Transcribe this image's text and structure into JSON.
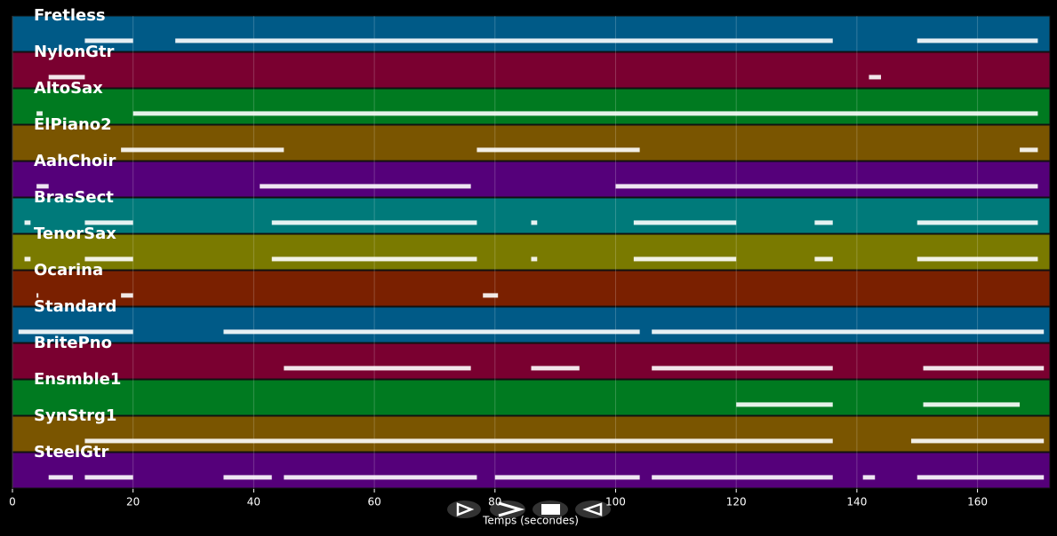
{
  "chart_data": {
    "type": "timeline",
    "xlabel": "Temps (secondes)",
    "xlim": [
      0,
      172
    ],
    "xticks": [
      0,
      20,
      40,
      60,
      80,
      100,
      120,
      140,
      160
    ],
    "grid": true,
    "tracks": [
      {
        "name": "Fretless",
        "color": "#005a87",
        "notes": [
          [
            12,
            20
          ],
          [
            27,
            136
          ],
          [
            150,
            170
          ]
        ]
      },
      {
        "name": "NylonGtr",
        "color": "#7a0030",
        "notes": [
          [
            6,
            12
          ],
          [
            142,
            144
          ]
        ]
      },
      {
        "name": "AltoSax",
        "color": "#007a20",
        "notes": [
          [
            4,
            5
          ],
          [
            20,
            170
          ]
        ]
      },
      {
        "name": "ElPiano2",
        "color": "#7a5500",
        "notes": [
          [
            18,
            45
          ],
          [
            77,
            104
          ],
          [
            167,
            170
          ]
        ]
      },
      {
        "name": "AahChoir",
        "color": "#55007a",
        "notes": [
          [
            4,
            6
          ],
          [
            41,
            76
          ],
          [
            100,
            170
          ]
        ]
      },
      {
        "name": "BrasSect",
        "color": "#007a7a",
        "notes": [
          [
            2,
            3
          ],
          [
            12,
            20
          ],
          [
            43,
            77
          ],
          [
            86,
            87
          ],
          [
            103,
            120
          ],
          [
            133,
            136
          ],
          [
            150,
            170
          ]
        ]
      },
      {
        "name": "TenorSax",
        "color": "#7a7a00",
        "notes": [
          [
            2,
            3
          ],
          [
            12,
            20
          ],
          [
            43,
            77
          ],
          [
            86,
            87
          ],
          [
            103,
            120
          ],
          [
            133,
            136
          ],
          [
            150,
            170
          ]
        ]
      },
      {
        "name": "Ocarina",
        "color": "#7a2000",
        "notes": [
          [
            4,
            4.3
          ],
          [
            18,
            20
          ],
          [
            78,
            80.5
          ]
        ]
      },
      {
        "name": "Standard",
        "color": "#005a87",
        "notes": [
          [
            1,
            20
          ],
          [
            35,
            104
          ],
          [
            106,
            171
          ]
        ]
      },
      {
        "name": "BritePno",
        "color": "#7a0030",
        "notes": [
          [
            45,
            76
          ],
          [
            86,
            94
          ],
          [
            106,
            136
          ],
          [
            151,
            171
          ]
        ]
      },
      {
        "name": "Ensmble1",
        "color": "#007a20",
        "notes": [
          [
            120,
            136
          ],
          [
            151,
            167
          ]
        ]
      },
      {
        "name": "SynStrg1",
        "color": "#7a5500",
        "notes": [
          [
            12,
            136
          ],
          [
            149,
            171
          ]
        ]
      },
      {
        "name": "SteelGtr",
        "color": "#55007a",
        "notes": [
          [
            6,
            10
          ],
          [
            12,
            20
          ],
          [
            35,
            43
          ],
          [
            45,
            77
          ],
          [
            80,
            104
          ],
          [
            106,
            136
          ],
          [
            141,
            143
          ],
          [
            150,
            171
          ]
        ]
      }
    ]
  }
}
